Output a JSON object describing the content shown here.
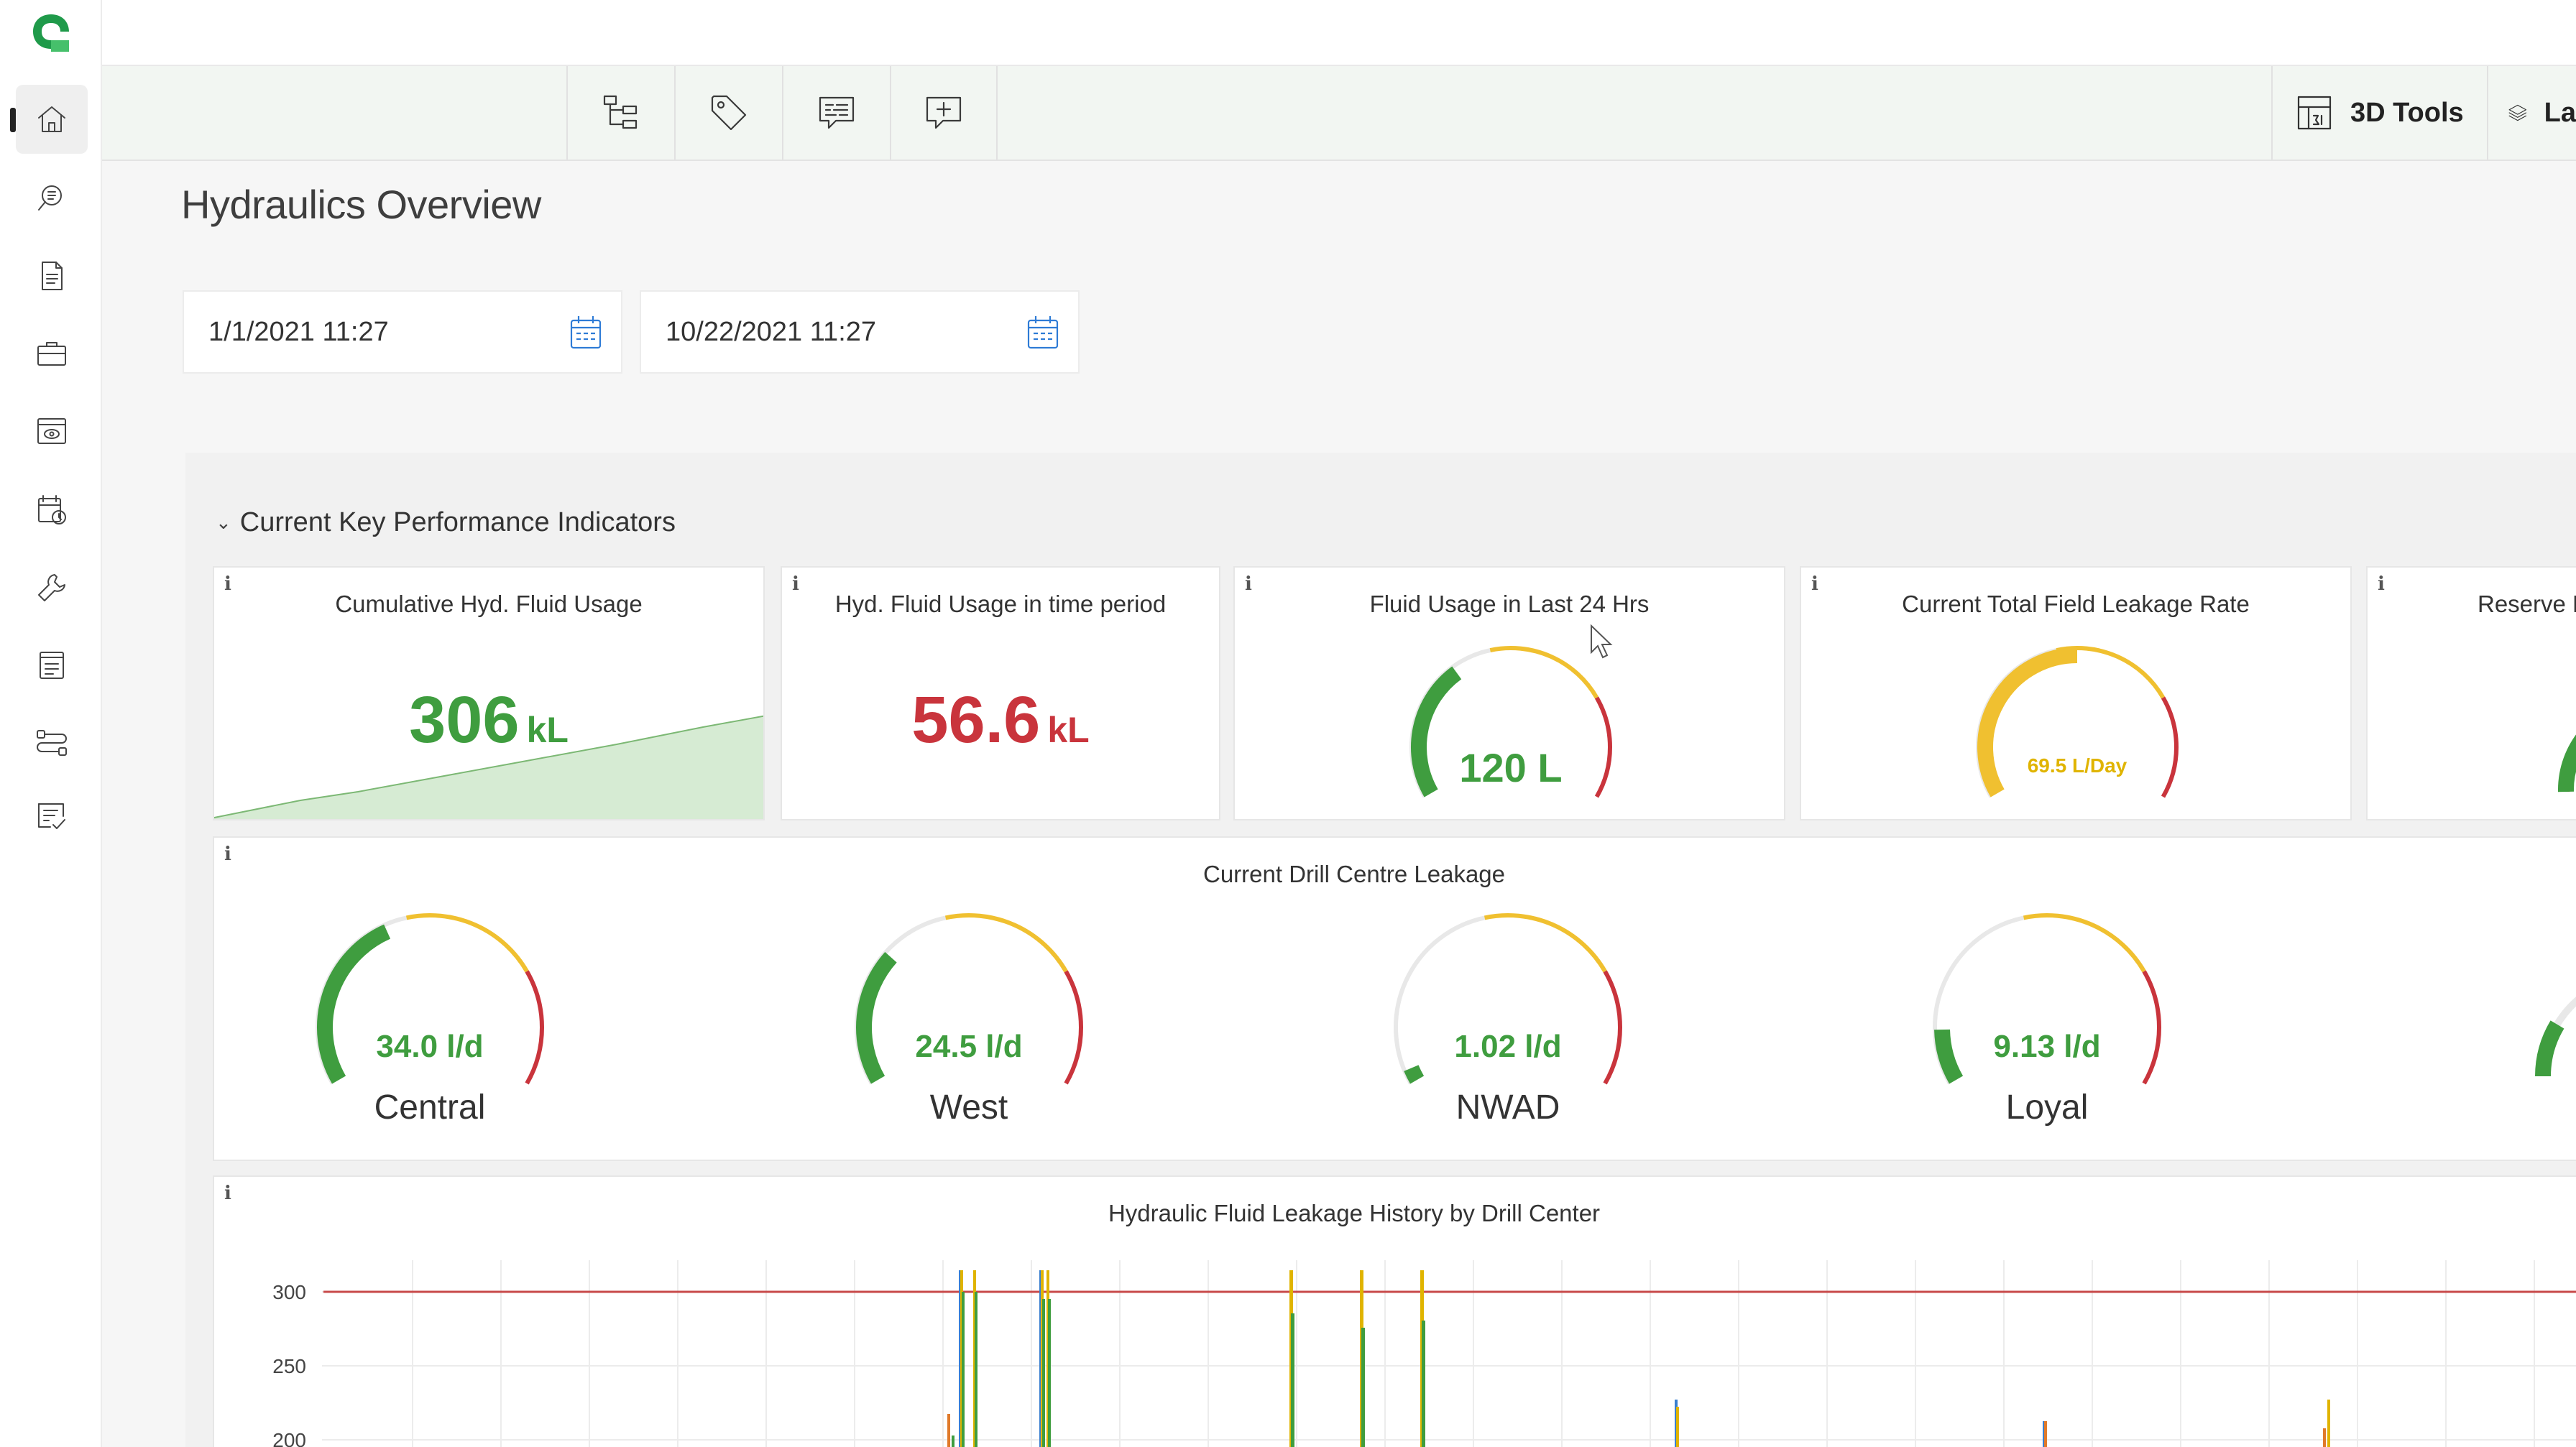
{
  "app": {
    "title": "Hydraulics Overview"
  },
  "icons": {
    "logo": "app-logo-icon",
    "sidebar": [
      "home-icon",
      "search-document-icon",
      "document-icon",
      "briefcase-icon",
      "eye-panel-icon",
      "calendar-clock-icon",
      "wrench-icon",
      "form-icon",
      "route-icon",
      "checklist-icon"
    ],
    "toolbar": [
      "hierarchy-icon",
      "tag-icon",
      "comment-list-icon",
      "add-comment-icon"
    ]
  },
  "toolbar": {
    "tools3d_label": "3D Tools",
    "layers_label": "La"
  },
  "dates": {
    "start": "1/1/2021 11:27",
    "end": "10/22/2021 11:27"
  },
  "section": {
    "title": "Current Key Performance Indicators"
  },
  "kpis": {
    "info": "i",
    "cumulative": {
      "title": "Cumulative Hyd. Fluid Usage",
      "value": "306",
      "unit": "kL"
    },
    "period": {
      "title": "Hyd. Fluid Usage in time period",
      "value": "56.6",
      "unit": "kL"
    },
    "last24": {
      "title": "Fluid Usage in Last 24 Hrs",
      "value": "120 L",
      "fill": 0.35
    },
    "leakage": {
      "title": "Current Total Field Leakage Rate",
      "value": "69.5 L/Day",
      "fill": 0.5
    },
    "reserve": {
      "title": "Reserve R"
    }
  },
  "drill": {
    "title": "Current Drill Centre Leakage",
    "centres": [
      {
        "name": "Central",
        "value": "34.0 l/d",
        "fill": 0.4
      },
      {
        "name": "West",
        "value": "24.5 l/d",
        "fill": 0.3
      },
      {
        "name": "NWAD",
        "value": "1.02 l/d",
        "fill": 0.03
      },
      {
        "name": "Loyal",
        "value": "9.13 l/d",
        "fill": 0.12
      }
    ]
  },
  "chart_data": {
    "type": "bar",
    "title": "Hydraulic Fluid Leakage History by Drill Center",
    "y_ticks": [
      "300",
      "250",
      "200"
    ],
    "threshold": 300,
    "colors": {
      "threshold": "#c84a4a",
      "green": "#3f9d3f",
      "yellow": "#e0b400",
      "blue": "#3a7fd0",
      "orange": "#e07a2a"
    }
  },
  "colors": {
    "green": "#3f9d3f",
    "red": "#c9343c",
    "yellow": "#f0c030",
    "gauge_track": "#e8e8e8"
  }
}
